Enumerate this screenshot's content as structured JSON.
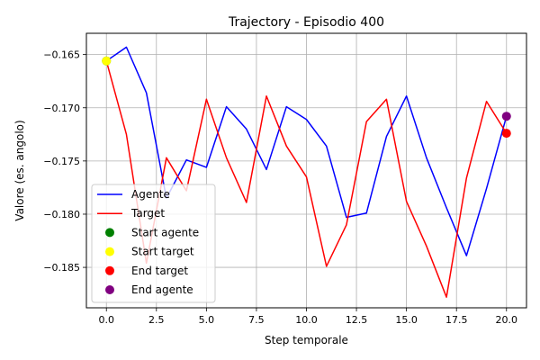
{
  "chart_data": {
    "type": "line",
    "title": "Trajectory - Episodio 400",
    "xlabel": "Step temporale",
    "ylabel": "Valore (es. angolo)",
    "xlim": [
      -1.0,
      21.0
    ],
    "ylim": [
      -0.1888,
      -0.163
    ],
    "x_ticks": [
      0.0,
      2.5,
      5.0,
      7.5,
      10.0,
      12.5,
      15.0,
      17.5,
      20.0
    ],
    "x_tick_labels": [
      "0.0",
      "2.5",
      "5.0",
      "7.5",
      "10.0",
      "12.5",
      "15.0",
      "17.5",
      "20.0"
    ],
    "y_ticks": [
      -0.185,
      -0.18,
      -0.175,
      -0.17,
      -0.165
    ],
    "y_tick_labels": [
      "−0.185",
      "−0.180",
      "−0.175",
      "−0.170",
      "−0.165"
    ],
    "grid": true,
    "legend_position": "lower-left",
    "x": [
      0,
      1,
      2,
      3,
      4,
      5,
      6,
      7,
      8,
      9,
      10,
      11,
      12,
      13,
      14,
      15,
      16,
      17,
      18,
      19,
      20
    ],
    "series": [
      {
        "name": "Agente",
        "color": "#0000ff",
        "values": [
          -0.1656,
          -0.1643,
          -0.1686,
          -0.1785,
          -0.1749,
          -0.1756,
          -0.1699,
          -0.172,
          -0.1758,
          -0.1699,
          -0.1711,
          -0.1736,
          -0.1803,
          -0.1799,
          -0.1727,
          -0.1689,
          -0.1747,
          -0.1794,
          -0.1839,
          -0.1776,
          -0.1708
        ]
      },
      {
        "name": "Target",
        "color": "#ff0000",
        "values": [
          -0.1656,
          -0.1725,
          -0.1846,
          -0.1747,
          -0.1778,
          -0.1692,
          -0.1747,
          -0.1789,
          -0.1689,
          -0.1736,
          -0.1765,
          -0.1849,
          -0.181,
          -0.1713,
          -0.1692,
          -0.1788,
          -0.183,
          -0.1878,
          -0.1766,
          -0.1694,
          -0.1724
        ]
      }
    ],
    "points": [
      {
        "name": "Start agente",
        "color": "#008000",
        "x": 0,
        "y": -0.1656
      },
      {
        "name": "Start target",
        "color": "#ffff00",
        "x": 0,
        "y": -0.1656
      },
      {
        "name": "End target",
        "color": "#ff0000",
        "x": 20,
        "y": -0.1724
      },
      {
        "name": "End agente",
        "color": "#800080",
        "x": 20,
        "y": -0.1708
      }
    ]
  }
}
